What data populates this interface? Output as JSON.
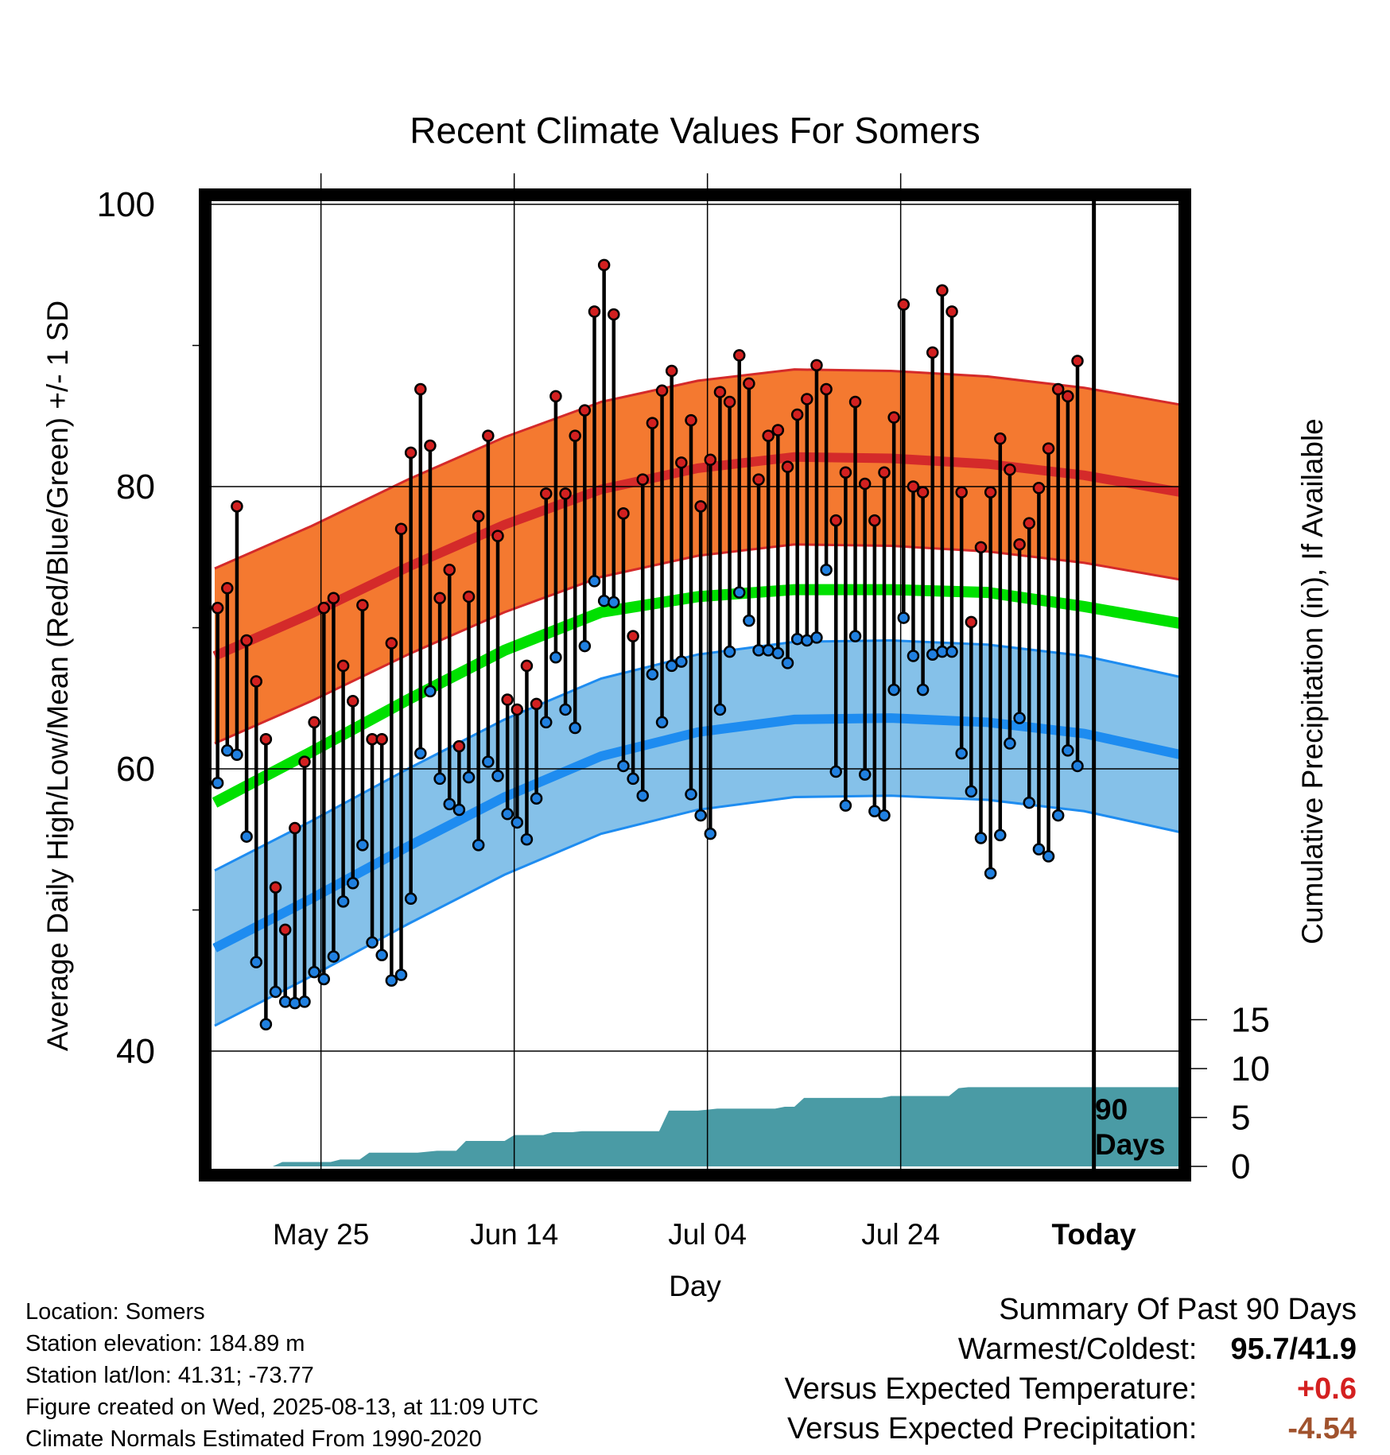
{
  "chart_data": {
    "type": "line",
    "title": "Recent Climate Values For Somers",
    "xlabel": "Day",
    "ylabel": "Average Daily High/Low/Mean (Red/Blue/Green) +/- 1 SD",
    "y2label": "Cumulative Precipitation (in), If Available",
    "ylim": [
      32,
      102
    ],
    "y2lim": [
      0,
      19
    ],
    "y_ticks": [
      40,
      60,
      80,
      100
    ],
    "y2_ticks": [
      0,
      5,
      10,
      15
    ],
    "x_tick_labels": [
      "May 25",
      "Jun 14",
      "Jul 04",
      "Jul 24",
      "Today"
    ],
    "x_tick_days": [
      11,
      31,
      51,
      71,
      91
    ],
    "today_marker": {
      "day": 91,
      "label_line1": "90",
      "label_line2": "Days"
    },
    "normals": {
      "days": [
        0,
        10,
        20,
        30,
        40,
        50,
        60,
        70,
        80,
        90,
        100
      ],
      "high": [
        68.0,
        71.0,
        74.3,
        77.3,
        79.8,
        81.3,
        82.1,
        82.0,
        81.6,
        80.8,
        79.6
      ],
      "high_sd": 6.2,
      "low": [
        47.3,
        50.8,
        54.5,
        58.0,
        60.9,
        62.6,
        63.5,
        63.6,
        63.3,
        62.5,
        61.0
      ],
      "low_sd": 5.5,
      "mean": [
        57.6,
        61.2,
        64.9,
        68.4,
        71.1,
        72.2,
        72.7,
        72.7,
        72.5,
        71.5,
        70.3
      ]
    },
    "series": [
      {
        "name": "High",
        "values": [
          71.4,
          72.8,
          78.6,
          69.1,
          66.2,
          62.1,
          51.6,
          48.6,
          55.8,
          60.5,
          63.3,
          71.4,
          72.1,
          67.3,
          64.8,
          71.6,
          62.1,
          62.1,
          68.9,
          77.0,
          82.4,
          86.9,
          82.9,
          72.1,
          74.1,
          61.6,
          72.2,
          77.9,
          83.6,
          76.5,
          64.9,
          64.2,
          67.3,
          64.6,
          79.5,
          86.4,
          79.5,
          83.6,
          85.4,
          92.4,
          95.7,
          92.2,
          78.1,
          69.4,
          80.5,
          84.5,
          86.8,
          88.2,
          81.7,
          84.7,
          78.6,
          81.9,
          86.7,
          86.0,
          89.3,
          87.3,
          80.5,
          83.6,
          84.0,
          81.4,
          85.1,
          86.2,
          88.6,
          86.9,
          77.6,
          81.0,
          86.0,
          80.2,
          77.6,
          81.0,
          84.9,
          92.9,
          80.0,
          79.6,
          89.5,
          93.9,
          92.4,
          79.6,
          70.4,
          75.7,
          79.6,
          83.4,
          81.2,
          75.9,
          77.4,
          79.9,
          82.7,
          86.9,
          86.4,
          88.9
        ]
      },
      {
        "name": "Low",
        "values": [
          59.0,
          61.3,
          61.0,
          55.2,
          46.3,
          41.9,
          44.2,
          43.5,
          43.4,
          43.5,
          45.6,
          45.1,
          46.7,
          50.6,
          51.9,
          54.6,
          47.7,
          46.8,
          45.0,
          45.4,
          50.8,
          61.1,
          65.5,
          59.3,
          57.5,
          57.1,
          59.4,
          54.6,
          60.5,
          59.5,
          56.8,
          56.2,
          55.0,
          57.9,
          63.3,
          67.9,
          64.2,
          62.9,
          68.7,
          73.3,
          71.9,
          71.8,
          60.2,
          59.3,
          58.1,
          66.7,
          63.3,
          67.3,
          67.6,
          58.2,
          56.7,
          55.4,
          64.2,
          68.3,
          72.5,
          70.5,
          68.4,
          68.4,
          68.2,
          67.5,
          69.2,
          69.1,
          69.3,
          74.1,
          59.8,
          57.4,
          69.4,
          59.6,
          57.0,
          56.7,
          65.6,
          70.7,
          68.0,
          65.6,
          68.1,
          68.3,
          68.3,
          61.1,
          58.4,
          55.1,
          52.6,
          55.3,
          61.8,
          63.6,
          57.6,
          54.3,
          53.8,
          56.7,
          61.3,
          60.2
        ]
      }
    ],
    "precip_cumulative": [
      [
        0,
        0
      ],
      [
        6,
        0
      ],
      [
        7,
        0.45
      ],
      [
        12,
        0.45
      ],
      [
        13,
        0.7
      ],
      [
        15,
        0.7
      ],
      [
        16,
        1.4
      ],
      [
        21,
        1.4
      ],
      [
        23,
        1.6
      ],
      [
        25,
        1.6
      ],
      [
        26,
        2.6
      ],
      [
        30,
        2.6
      ],
      [
        31,
        3.2
      ],
      [
        34,
        3.2
      ],
      [
        35,
        3.5
      ],
      [
        37,
        3.5
      ],
      [
        38,
        3.6
      ],
      [
        46,
        3.6
      ],
      [
        47,
        5.7
      ],
      [
        50,
        5.7
      ],
      [
        52,
        5.9
      ],
      [
        58,
        5.9
      ],
      [
        59,
        6.1
      ],
      [
        60,
        6.1
      ],
      [
        61,
        7.0
      ],
      [
        69,
        7.0
      ],
      [
        70,
        7.2
      ],
      [
        73,
        7.2
      ],
      [
        74,
        7.2
      ],
      [
        76,
        7.2
      ],
      [
        77,
        8.0
      ],
      [
        78,
        8.1
      ],
      [
        100,
        8.1
      ]
    ]
  },
  "footer": {
    "location": "Location: Somers",
    "elevation": "Station elevation: 184.89 m",
    "latlon": "Station lat/lon: 41.31; -73.77",
    "created": "Figure created on Wed, 2025-08-13, at 11:09 UTC",
    "normals": "Climate Normals Estimated From 1990-2020"
  },
  "summary": {
    "title": "Summary Of Past 90 Days",
    "warmest_coldest_label": "Warmest/Coldest:",
    "warmest_coldest_value": "95.7/41.9",
    "temp_label": "Versus Expected Temperature:",
    "temp_value": "+0.6",
    "precip_label": "Versus Expected Precipitation:",
    "precip_value": "-4.54"
  },
  "colors": {
    "high_band": "#F47930",
    "high_line": "#D42A2A",
    "low_band": "#85C1E9",
    "low_line": "#1E8CF0",
    "mean_line": "#00E000",
    "precip_fill": "#4A9BA5",
    "high_dot": "#D22020",
    "low_dot": "#2080E0",
    "summary_temp": "#D42020",
    "summary_precip": "#A0522D"
  }
}
